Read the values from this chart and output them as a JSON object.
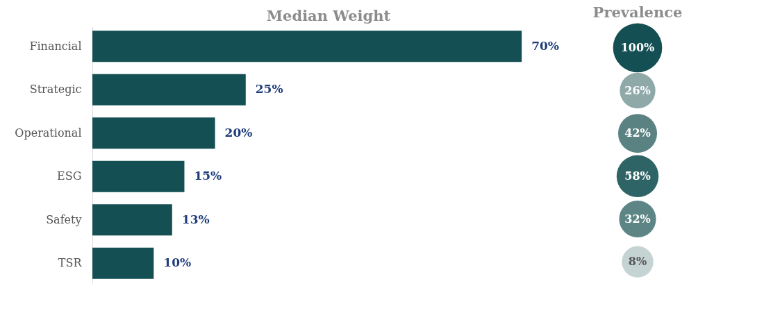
{
  "chart_data": [
    {
      "type": "bar",
      "orientation": "horizontal",
      "title": "Median Weight",
      "categories": [
        "Financial",
        "Strategic",
        "Operational",
        "ESG",
        "Safety",
        "TSR"
      ],
      "values": [
        70,
        25,
        20,
        15,
        13,
        10
      ],
      "value_labels": [
        "70%",
        "25%",
        "20%",
        "15%",
        "13%",
        "10%"
      ],
      "color": "#134f53",
      "tick_labels": "y",
      "grid": false
    },
    {
      "type": "other",
      "title": "Prevalence",
      "values": [
        100,
        26,
        42,
        58,
        32,
        8
      ],
      "value_labels": [
        "100%",
        "26%",
        "42%",
        "58%",
        "32%",
        "8%"
      ],
      "colors": [
        "#134f53",
        "#8fa9a9",
        "#5b8283",
        "#2f6466",
        "#5d8585",
        "#c6d3d3"
      ]
    }
  ]
}
